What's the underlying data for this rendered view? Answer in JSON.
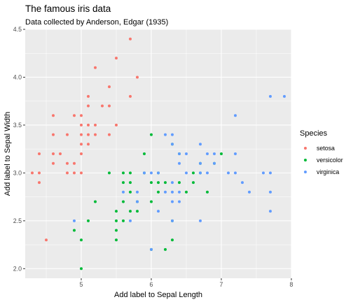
{
  "chart_data": {
    "type": "scatter",
    "title": "The famous iris data",
    "subtitle": "Data collected by Anderson, Edgar (1935)",
    "xlabel": "Add label to Sepal Length",
    "ylabel": "Add label to Sepal Width",
    "xlim": [
      4.2,
      8.0
    ],
    "ylim": [
      1.9,
      4.5
    ],
    "x_ticks": [
      5,
      6,
      7,
      8
    ],
    "x_tick_labels": [
      "5",
      "6",
      "7",
      "8"
    ],
    "y_ticks": [
      2.0,
      2.5,
      3.0,
      3.5,
      4.0,
      4.5
    ],
    "y_tick_labels": [
      "2.0",
      "2.5",
      "3.0",
      "3.5",
      "4.0",
      "4.5"
    ],
    "grid": true,
    "legend": {
      "title": "Species",
      "placement": "right"
    },
    "series": [
      {
        "name": "setosa",
        "color": "#F8766D",
        "points": [
          [
            4.3,
            3.0
          ],
          [
            4.4,
            2.9
          ],
          [
            4.4,
            3.0
          ],
          [
            4.4,
            3.2
          ],
          [
            4.5,
            2.3
          ],
          [
            4.6,
            3.1
          ],
          [
            4.6,
            3.2
          ],
          [
            4.6,
            3.4
          ],
          [
            4.6,
            3.6
          ],
          [
            4.7,
            3.2
          ],
          [
            4.8,
            3.0
          ],
          [
            4.8,
            3.1
          ],
          [
            4.8,
            3.4
          ],
          [
            4.9,
            3.0
          ],
          [
            4.9,
            3.1
          ],
          [
            4.9,
            3.6
          ],
          [
            5.0,
            3.0
          ],
          [
            5.0,
            3.2
          ],
          [
            5.0,
            3.3
          ],
          [
            5.0,
            3.4
          ],
          [
            5.0,
            3.5
          ],
          [
            5.0,
            3.6
          ],
          [
            5.1,
            3.3
          ],
          [
            5.1,
            3.4
          ],
          [
            5.1,
            3.5
          ],
          [
            5.1,
            3.7
          ],
          [
            5.1,
            3.8
          ],
          [
            5.2,
            3.4
          ],
          [
            5.2,
            3.5
          ],
          [
            5.2,
            4.1
          ],
          [
            5.3,
            3.7
          ],
          [
            5.4,
            3.4
          ],
          [
            5.4,
            3.7
          ],
          [
            5.4,
            3.9
          ],
          [
            5.5,
            3.5
          ],
          [
            5.5,
            4.2
          ],
          [
            5.7,
            3.8
          ],
          [
            5.7,
            4.4
          ],
          [
            5.8,
            4.0
          ]
        ]
      },
      {
        "name": "versicolor",
        "color": "#00BA38",
        "points": [
          [
            4.9,
            2.4
          ],
          [
            5.0,
            2.0
          ],
          [
            5.0,
            2.3
          ],
          [
            5.1,
            2.5
          ],
          [
            5.2,
            2.7
          ],
          [
            5.4,
            3.0
          ],
          [
            5.5,
            2.3
          ],
          [
            5.5,
            2.4
          ],
          [
            5.5,
            2.5
          ],
          [
            5.5,
            2.6
          ],
          [
            5.6,
            2.5
          ],
          [
            5.6,
            2.7
          ],
          [
            5.6,
            2.9
          ],
          [
            5.6,
            3.0
          ],
          [
            5.7,
            2.6
          ],
          [
            5.7,
            2.8
          ],
          [
            5.7,
            2.9
          ],
          [
            5.7,
            3.0
          ],
          [
            5.8,
            2.6
          ],
          [
            5.8,
            2.7
          ],
          [
            5.9,
            3.0
          ],
          [
            5.9,
            3.2
          ],
          [
            6.0,
            2.2
          ],
          [
            6.0,
            2.7
          ],
          [
            6.0,
            2.9
          ],
          [
            6.0,
            3.4
          ],
          [
            6.1,
            2.8
          ],
          [
            6.1,
            2.9
          ],
          [
            6.1,
            3.0
          ],
          [
            6.2,
            2.2
          ],
          [
            6.2,
            2.9
          ],
          [
            6.3,
            2.3
          ],
          [
            6.3,
            2.5
          ],
          [
            6.3,
            3.3
          ],
          [
            6.4,
            2.9
          ],
          [
            6.4,
            3.2
          ],
          [
            6.5,
            2.8
          ],
          [
            6.6,
            2.9
          ],
          [
            6.6,
            3.0
          ],
          [
            6.7,
            3.0
          ],
          [
            6.7,
            3.1
          ],
          [
            6.8,
            2.8
          ],
          [
            6.9,
            3.1
          ],
          [
            7.0,
            3.2
          ]
        ]
      },
      {
        "name": "virginica",
        "color": "#619CFF",
        "points": [
          [
            4.9,
            2.5
          ],
          [
            5.6,
            2.8
          ],
          [
            5.7,
            2.5
          ],
          [
            5.8,
            2.7
          ],
          [
            5.8,
            2.8
          ],
          [
            5.9,
            3.0
          ],
          [
            6.0,
            2.2
          ],
          [
            6.0,
            3.0
          ],
          [
            6.1,
            2.6
          ],
          [
            6.1,
            3.0
          ],
          [
            6.2,
            2.8
          ],
          [
            6.2,
            3.4
          ],
          [
            6.3,
            2.5
          ],
          [
            6.3,
            2.7
          ],
          [
            6.3,
            2.8
          ],
          [
            6.3,
            2.9
          ],
          [
            6.3,
            3.3
          ],
          [
            6.3,
            3.4
          ],
          [
            6.4,
            2.7
          ],
          [
            6.4,
            2.8
          ],
          [
            6.4,
            3.1
          ],
          [
            6.4,
            3.2
          ],
          [
            6.5,
            3.0
          ],
          [
            6.5,
            3.2
          ],
          [
            6.7,
            2.5
          ],
          [
            6.7,
            3.0
          ],
          [
            6.7,
            3.1
          ],
          [
            6.7,
            3.3
          ],
          [
            6.8,
            3.0
          ],
          [
            6.8,
            3.2
          ],
          [
            6.9,
            3.1
          ],
          [
            6.9,
            3.2
          ],
          [
            7.1,
            3.0
          ],
          [
            7.2,
            3.0
          ],
          [
            7.2,
            3.2
          ],
          [
            7.2,
            3.6
          ],
          [
            7.3,
            2.9
          ],
          [
            7.4,
            2.8
          ],
          [
            7.6,
            3.0
          ],
          [
            7.7,
            2.6
          ],
          [
            7.7,
            2.8
          ],
          [
            7.7,
            3.0
          ],
          [
            7.7,
            3.8
          ],
          [
            7.9,
            3.8
          ]
        ]
      }
    ]
  }
}
